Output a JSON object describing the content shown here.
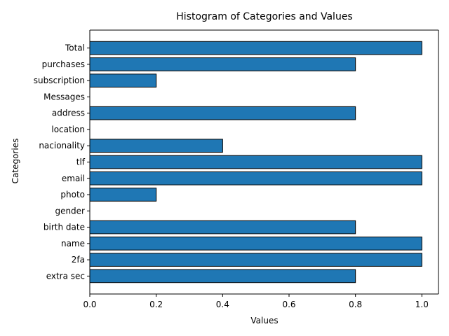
{
  "chart_data": {
    "type": "bar",
    "orientation": "horizontal",
    "title": "Histogram of Categories and Values",
    "xlabel": "Values",
    "ylabel": "Categories",
    "xlim": [
      0,
      1.05
    ],
    "xticks": [
      0.0,
      0.2,
      0.4,
      0.6,
      0.8,
      1.0
    ],
    "xtick_labels": [
      "0.0",
      "0.2",
      "0.4",
      "0.6",
      "0.8",
      "1.0"
    ],
    "grid": false,
    "categories": [
      "extra sec",
      "2fa",
      "name",
      "birth date",
      "gender",
      "photo",
      "email",
      "tlf",
      "nacionality",
      "location",
      "address",
      "Messages",
      "subscription",
      "purchases",
      "Total"
    ],
    "values": [
      0.8,
      1.0,
      1.0,
      0.8,
      0.0,
      0.2,
      1.0,
      1.0,
      0.4,
      0.0,
      0.8,
      0.0,
      0.2,
      0.8,
      1.0
    ],
    "bar_color": "#1f77b4",
    "edge_color": "#000000"
  }
}
